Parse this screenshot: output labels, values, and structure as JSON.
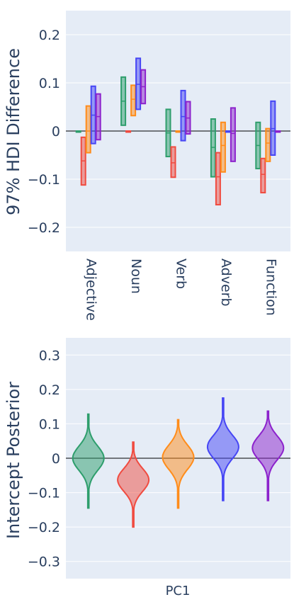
{
  "chart_data": [
    {
      "type": "box",
      "ylabel": "97% HDI Difference",
      "ylim": [
        -0.25,
        0.25
      ],
      "yticks": [
        -0.2,
        -0.1,
        0,
        0.1,
        0.2
      ],
      "ytick_labels": [
        "−0.2",
        "−0.1",
        "0",
        "0.1",
        "0.2"
      ],
      "grid": true,
      "zero_line": true,
      "categories": [
        "Adjective",
        "Noun",
        "Verb",
        "Adverb",
        "Function"
      ],
      "series": [
        {
          "color": "#2e9e6c",
          "values": [
            {
              "low": 0.0,
              "mid": 0.0,
              "high": 0.0
            },
            {
              "low": 0.012,
              "mid": 0.062,
              "high": 0.112
            },
            {
              "low": -0.053,
              "mid": -0.004,
              "high": 0.045
            },
            {
              "low": -0.095,
              "mid": -0.034,
              "high": 0.025
            },
            {
              "low": -0.078,
              "mid": -0.03,
              "high": 0.018
            }
          ]
        },
        {
          "color": "#f04b40",
          "values": [
            {
              "low": -0.112,
              "mid": -0.062,
              "high": -0.013
            },
            {
              "low": 0.0,
              "mid": 0.0,
              "high": 0.0
            },
            {
              "low": -0.096,
              "mid": -0.066,
              "high": -0.033
            },
            {
              "low": -0.153,
              "mid": -0.095,
              "high": -0.045
            },
            {
              "low": -0.128,
              "mid": -0.09,
              "high": -0.057
            }
          ]
        },
        {
          "color": "#ff8c1a",
          "values": [
            {
              "low": -0.045,
              "mid": 0.0,
              "high": 0.052
            },
            {
              "low": 0.032,
              "mid": 0.066,
              "high": 0.095
            },
            {
              "low": 0.0,
              "mid": 0.0,
              "high": 0.0
            },
            {
              "low": -0.085,
              "mid": -0.03,
              "high": 0.018
            },
            {
              "low": -0.063,
              "mid": -0.025,
              "high": 0.005
            }
          ]
        },
        {
          "color": "#4646f5",
          "values": [
            {
              "low": -0.026,
              "mid": 0.033,
              "high": 0.093
            },
            {
              "low": 0.045,
              "mid": 0.097,
              "high": 0.151
            },
            {
              "low": -0.02,
              "mid": 0.03,
              "high": 0.084
            },
            {
              "low": 0.0,
              "mid": 0.0,
              "high": 0.0
            },
            {
              "low": -0.05,
              "mid": 0.005,
              "high": 0.062
            }
          ]
        },
        {
          "color": "#8c22cc",
          "values": [
            {
              "low": -0.018,
              "mid": 0.03,
              "high": 0.077
            },
            {
              "low": 0.057,
              "mid": 0.092,
              "high": 0.127
            },
            {
              "low": -0.006,
              "mid": 0.027,
              "high": 0.061
            },
            {
              "low": -0.063,
              "mid": -0.005,
              "high": 0.048
            },
            {
              "low": 0.0,
              "mid": 0.0,
              "high": 0.0
            }
          ]
        }
      ]
    },
    {
      "type": "violin",
      "ylabel": "Intercept Posterior",
      "xlabel": "PC1",
      "ylim": [
        -0.35,
        0.35
      ],
      "yticks": [
        -0.3,
        -0.2,
        -0.1,
        0,
        0.1,
        0.2,
        0.3
      ],
      "ytick_labels": [
        "−0.3",
        "−0.2",
        "−0.1",
        "0",
        "0.1",
        "0.2",
        "0.3"
      ],
      "grid": true,
      "zero_line": true,
      "series": [
        {
          "color": "#2e9e6c",
          "center": 0.0,
          "spread": 0.035,
          "min": -0.145,
          "max": 0.128
        },
        {
          "color": "#f04b40",
          "center": -0.063,
          "spread": 0.033,
          "min": -0.2,
          "max": 0.047
        },
        {
          "color": "#ff8c1a",
          "center": 0.003,
          "spread": 0.035,
          "min": -0.145,
          "max": 0.112
        },
        {
          "color": "#4646f5",
          "center": 0.033,
          "spread": 0.034,
          "min": -0.123,
          "max": 0.175
        },
        {
          "color": "#8c22cc",
          "center": 0.03,
          "spread": 0.034,
          "min": -0.123,
          "max": 0.137
        }
      ]
    }
  ]
}
